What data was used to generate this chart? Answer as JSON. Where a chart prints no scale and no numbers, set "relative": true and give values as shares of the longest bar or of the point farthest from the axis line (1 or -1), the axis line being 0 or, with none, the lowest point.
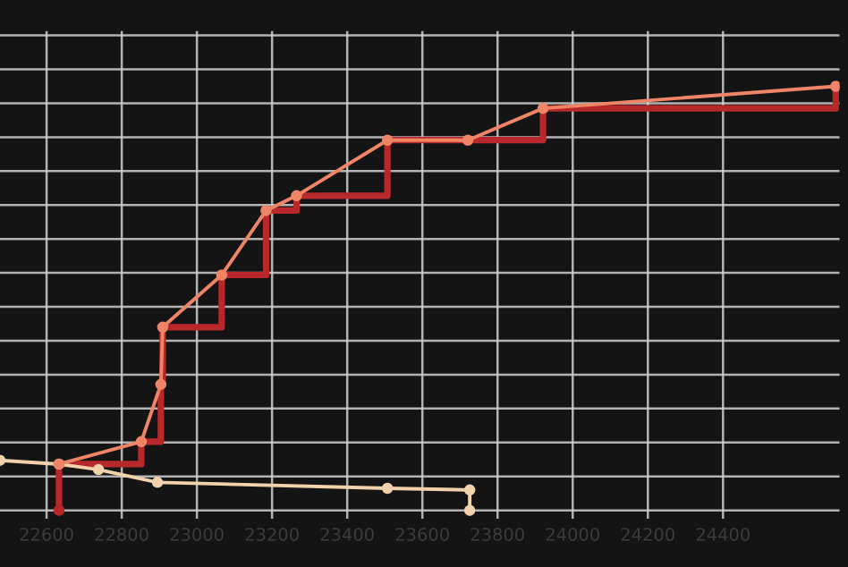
{
  "chart_data": {
    "type": "line",
    "relative": true,
    "grid": true,
    "legend": false,
    "tick_labels": "x",
    "xlim": [
      22476,
      24710
    ],
    "xticks": [
      22600,
      22800,
      23000,
      23200,
      23400,
      23600,
      23800,
      24000,
      24200,
      24400
    ],
    "series": [
      {
        "type": "step",
        "color": "#b8282a",
        "marker": "none",
        "x": [
          22633,
          22633,
          22852,
          22904,
          22909,
          23066,
          23184,
          23265,
          23507,
          23721,
          23921,
          24700
        ],
        "values": [
          0,
          0.109,
          0.162,
          0.297,
          0.432,
          0.555,
          0.707,
          0.742,
          0.873,
          0.873,
          0.948,
          1.0
        ]
      },
      {
        "type": "line",
        "color": "#ef8466",
        "marker": "circle",
        "x": [
          22633,
          22852,
          22904,
          22909,
          23066,
          23184,
          23265,
          23507,
          23721,
          23921,
          24700
        ],
        "values": [
          0.109,
          0.162,
          0.297,
          0.432,
          0.555,
          0.707,
          0.742,
          0.873,
          0.873,
          0.948,
          1.0
        ]
      },
      {
        "color": "#f1d2ad",
        "marker": "circle",
        "x": [
          22476,
          22633,
          22738,
          22895,
          23507,
          23726,
          23726
        ],
        "values": [
          0.118,
          0.109,
          0.096,
          0.066,
          0.052,
          0.048,
          0
        ]
      }
    ]
  }
}
